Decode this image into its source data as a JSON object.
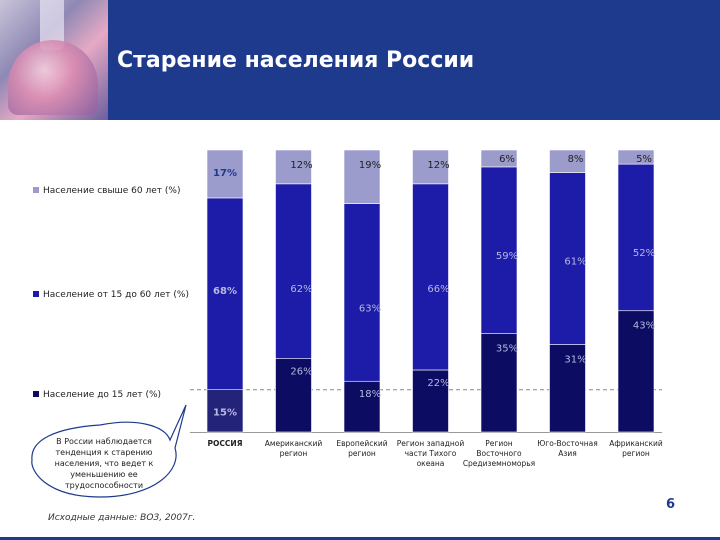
{
  "title": "Старение населения России",
  "colors": {
    "header": "#1e3a8c",
    "s60plus": "#9b9bcc",
    "s15to60": "#1c1ca8",
    "s0to15": "#0c0c63",
    "s0to15_russia": "#23237a"
  },
  "legend": [
    "Население свыше 60 лет (%)",
    "Население от 15 до 60 лет (%)",
    "Население до 15 лет (%)"
  ],
  "callout": "В России наблюдается тенденция к старению населения, что ведет к уменьшению ее трудоспособности",
  "source": "Исходные данные: ВОЗ, 2007г.",
  "page_number": "6",
  "chart_data": {
    "type": "bar",
    "stacked": true,
    "normalized_percent": true,
    "ylim": [
      0,
      100
    ],
    "categories": [
      [
        "РОССИЯ"
      ],
      [
        "Американский",
        "регион"
      ],
      [
        "Европейский",
        "регион"
      ],
      [
        "Регион западной",
        "части Тихого",
        "океана"
      ],
      [
        "Регион",
        "Восточного",
        "Средиземноморья"
      ],
      [
        "Юго-Восточная",
        "Азия"
      ],
      [
        "Африканский",
        "регион"
      ]
    ],
    "series": [
      {
        "name": "Население до 15 лет (%)",
        "values": [
          15,
          26,
          18,
          22,
          35,
          31,
          43
        ],
        "labels": [
          "15%",
          "26%",
          "18%",
          "22%",
          "35%",
          "31%",
          "43%"
        ]
      },
      {
        "name": "Население от 15 до 60 лет (%)",
        "values": [
          68,
          62,
          63,
          66,
          59,
          61,
          52
        ],
        "labels": [
          "68%",
          "62%",
          "63%",
          "66%",
          "59%",
          "61%",
          "52%"
        ]
      },
      {
        "name": "Население свыше 60 лет (%)",
        "values": [
          17,
          12,
          19,
          12,
          6,
          8,
          5
        ],
        "labels": [
          "17%",
          "12%",
          "19%",
          "12%",
          "6%",
          "8%",
          "5%"
        ]
      }
    ]
  }
}
